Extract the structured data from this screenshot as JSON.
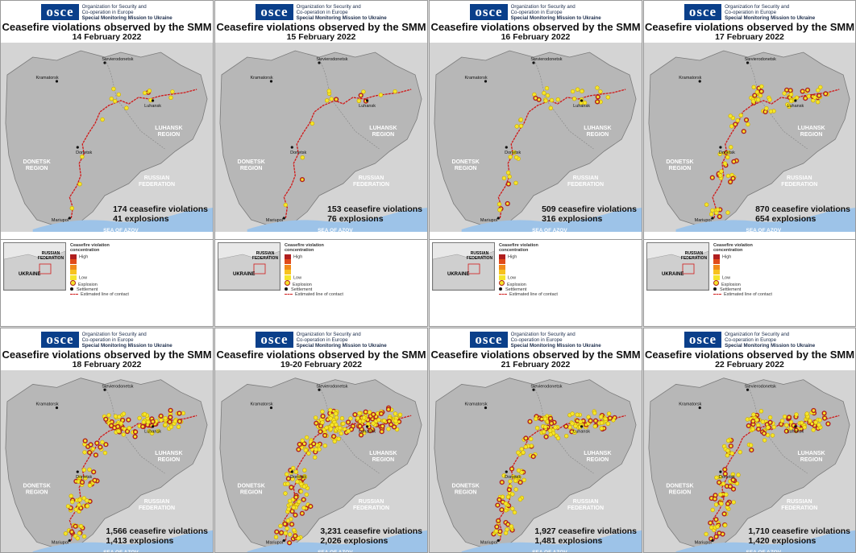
{
  "org_logo_text": "osce",
  "org_line1": "Organization for Security and",
  "org_line2": "Co-operation in Europe",
  "org_line3": "Special Monitoring Mission to Ukraine",
  "map_labels": {
    "donetsk_region": "DONETSK\nREGION",
    "luhansk_region": "LUHANSK\nREGION",
    "russian_federation": "RUSSIAN\nFEDERATION",
    "sea_of_azov": "SEA OF AZOV",
    "luhansk": "Luhansk",
    "donetsk": "Donetsk",
    "kramatorsk": "Kramatorsk",
    "sievierodonetsk": "Sievierodonetsk",
    "mariupol": "Mariupol"
  },
  "legend": {
    "title": "Ceasefire violation concentration",
    "high": "High",
    "low": "Low",
    "explosion": "Explosion",
    "settlement": "Settlement",
    "contact_line": "Estimated line of contact"
  },
  "inset_map": {
    "russian_federation": "RUSSIAN\nFEDERATION",
    "ukraine": "UKRAINE"
  },
  "panels": [
    {
      "title": "Ceasefire violations observed by the SMM",
      "date": "14 February 2022",
      "violations": "174 ceasefire violations",
      "explosions": "41 explosions",
      "intensity": 1
    },
    {
      "title": "Ceasefire violations observed by the SMM",
      "date": "15 February 2022",
      "violations": "153 ceasefire violations",
      "explosions": "76 explosions",
      "intensity": 1
    },
    {
      "title": "Ceasefire violations observed by the SMM",
      "date": "16 February 2022",
      "violations": "509 ceasefire violations",
      "explosions": "316 explosions",
      "intensity": 2
    },
    {
      "title": "Ceasefire violations observed by the SMM",
      "date": "17 February 2022",
      "violations": "870 ceasefire violations",
      "explosions": "654 explosions",
      "intensity": 3
    },
    {
      "title": "Ceasefire violations observed by the SMM",
      "date": "18 February 2022",
      "violations": "1,566 ceasefire violations",
      "explosions": "1,413 explosions",
      "intensity": 4
    },
    {
      "title": "Ceasefire violations observed by the SMM",
      "date": "19-20 February 2022",
      "violations": "3,231 ceasefire violations",
      "explosions": "2,026 explosions",
      "intensity": 5
    },
    {
      "title": "Ceasefire violations observed by the SMM",
      "date": "21 February 2022",
      "violations": "1,927 ceasefire violations",
      "explosions": "1,481 explosions",
      "intensity": 4
    },
    {
      "title": "Ceasefire violations observed by the SMM",
      "date": "22 February 2022",
      "violations": "1,710 ceasefire violations",
      "explosions": "1,420 explosions",
      "intensity": 4
    }
  ],
  "colors": {
    "logo_blue": "#0a3f8a",
    "region_fill": "#b7b7b7",
    "outside_fill": "#d4d4d4",
    "sea": "#9dc3e8",
    "contact_line": "#d01818",
    "violation_yellow": "#f5e52a",
    "violation_red": "#b01e1e"
  }
}
